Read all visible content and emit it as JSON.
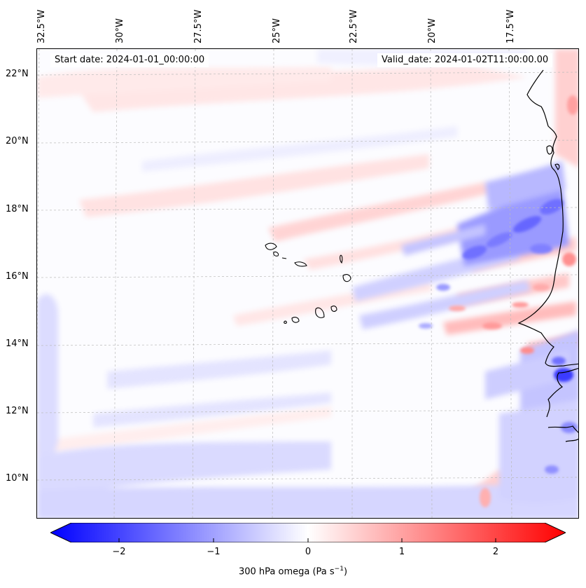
{
  "header": {
    "start_date": "Start date: 2024-01-01_00:00:00",
    "valid_date": "Valid_date: 2024-01-02T11:00:00.00"
  },
  "axes": {
    "lon_labels": [
      "32.5°W",
      "30°W",
      "27.5°W",
      "25°W",
      "22.5°W",
      "20°W",
      "17.5°W"
    ],
    "lat_labels": [
      "22°N",
      "20°N",
      "18°N",
      "16°N",
      "14°N",
      "12°N",
      "10°N"
    ]
  },
  "colorbar": {
    "ticks": [
      "−2",
      "−1",
      "0",
      "1",
      "2"
    ],
    "label_prefix": "300 hPa omega (Pa s",
    "label_exp": "−1",
    "label_suffix": ")",
    "min_color": "#0000ff",
    "mid_color": "#ffffff",
    "max_color": "#ff0000"
  },
  "map": {
    "region": "Cape Verde / West Africa coast",
    "coastline_color": "#000000",
    "gridline_color": "#bbbbbb"
  }
}
